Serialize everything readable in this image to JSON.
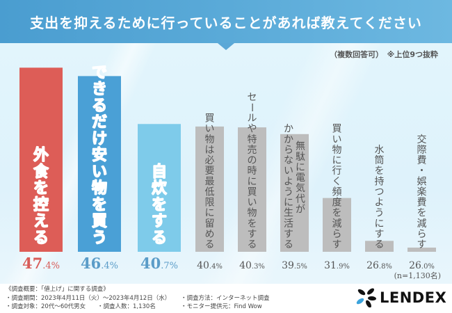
{
  "header": {
    "title": "支出を抑えるために行っていることがあれば教えてください",
    "note": "（複数回答可）　※上位9つ抜粋"
  },
  "colors": {
    "highlight_1": "#dd5d57",
    "highlight_2": "#4aa0d6",
    "highlight_3": "#7ecbea",
    "other": "#bdbdbd",
    "value_1": "#d85c58",
    "value_2": "#5a9cc8",
    "value_other": "#555555"
  },
  "chart_data": {
    "type": "bar",
    "title": "支出を抑えるために行っていることがあれば教えてください",
    "subtitle": "（複数回答可）　※上位9つ抜粋",
    "xlabel": "",
    "ylabel": "",
    "unit": "%",
    "grid": false,
    "legend": "none",
    "categories": [
      "外食を控える",
      "できるだけ安い物を買う",
      "自炊をする",
      "買い物は必要最低限に留める",
      "セールや特売の時に買い物をする",
      "無駄に電気代がかからないように生活する",
      "買い物に行く頻度を減らす",
      "水筒を持つようにする",
      "交際費・娯楽費を減らす"
    ],
    "label_columns": [
      [
        "外食を控える"
      ],
      [
        "できるだけ安い物を買う"
      ],
      [
        "自炊をする"
      ],
      [
        "買い物は必要最低限に留める"
      ],
      [
        "セールや特売の時に買い物をする"
      ],
      [
        "無駄に電気代が",
        "かからないように生活する"
      ],
      [
        "買い物に行く頻度を減らす"
      ],
      [
        "水筒を持つようにする"
      ],
      [
        "交際費・娯楽費を減らす"
      ]
    ],
    "values": [
      47.4,
      46.4,
      40.7,
      40.4,
      40.3,
      39.5,
      31.9,
      26.8,
      26.0
    ],
    "value_int": [
      "47",
      "46",
      "40",
      "40",
      "40",
      "39",
      "31",
      "26",
      "26"
    ],
    "value_dec": [
      ".4%",
      ".4%",
      ".7%",
      ".4%",
      ".3%",
      ".5%",
      ".9%",
      ".8%",
      ".0%"
    ],
    "ylim": [
      25.5,
      48.5
    ],
    "n_label": "(n=1,130名)"
  },
  "footer": {
    "heading": "《調査概要：「値上げ」に関する調査》",
    "period": "・調査期間：2023年4月11日（火）～2023年4月12日（水）",
    "method": "・調査方法：インターネット調査",
    "target": "・調査対象：20代～60代男女",
    "count": "・調査人数：1,130名",
    "provider": "・モニター提供元：Find Wow"
  },
  "logo": {
    "text": "LENDEX",
    "mark_dark": "#111111",
    "mark_accent": "#3ba3dc"
  }
}
